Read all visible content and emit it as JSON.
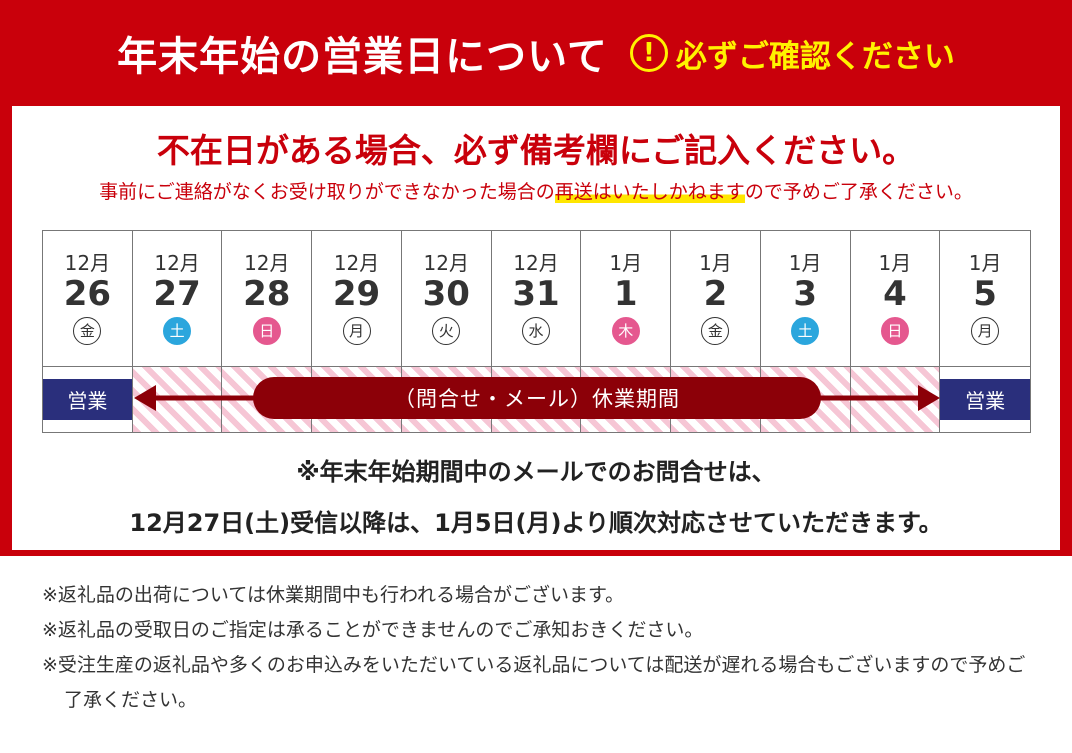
{
  "header": {
    "title": "年末年始の営業日について",
    "warning_icon": "exclamation-circle-icon",
    "warning": "必ずご確認ください"
  },
  "notice": {
    "line1": "不在日がある場合、必ず備考欄にご記入ください。",
    "line2_a": "事前にご連絡がなくお受け取りができなかった場合の",
    "line2_highlight": "再送はいたしかねます",
    "line2_b": "ので予めご了承ください。"
  },
  "calendar": {
    "days": [
      {
        "month": "12月",
        "day": "26",
        "weekday": "金",
        "type": "weekday"
      },
      {
        "month": "12月",
        "day": "27",
        "weekday": "土",
        "type": "sat"
      },
      {
        "month": "12月",
        "day": "28",
        "weekday": "日",
        "type": "sun"
      },
      {
        "month": "12月",
        "day": "29",
        "weekday": "月",
        "type": "weekday"
      },
      {
        "month": "12月",
        "day": "30",
        "weekday": "火",
        "type": "weekday"
      },
      {
        "month": "12月",
        "day": "31",
        "weekday": "水",
        "type": "weekday"
      },
      {
        "month": "1月",
        "day": "1",
        "weekday": "木",
        "type": "sun"
      },
      {
        "month": "1月",
        "day": "2",
        "weekday": "金",
        "type": "weekday"
      },
      {
        "month": "1月",
        "day": "3",
        "weekday": "土",
        "type": "sat"
      },
      {
        "month": "1月",
        "day": "4",
        "weekday": "日",
        "type": "sun"
      },
      {
        "month": "1月",
        "day": "5",
        "weekday": "月",
        "type": "weekday"
      }
    ],
    "open_label": "営業",
    "closed_label": "（問合せ・メール）休業期間"
  },
  "mail_note": {
    "line1": "※年末年始期間中のメールでのお問合せは、",
    "line2": "12月27日(土)受信以降は、1月5日(月)より順次対応させていただきます。"
  },
  "footnotes": [
    "※返礼品の出荷については休業期間中も行われる場合がございます。",
    "※返礼品の受取日のご指定は承ることができませんのでご承知おきください。",
    "※受注生産の返礼品や多くのお申込みをいただいている返礼品については配送が遅れる場合もございますので予めご了承ください。"
  ],
  "colors": {
    "brand_red": "#c9000b",
    "closed_bar": "#8c0008",
    "open_bar": "#2a2f7c",
    "saturday": "#2ba6dd",
    "sunday_holiday": "#e5588f",
    "highlight": "#ffe600"
  }
}
